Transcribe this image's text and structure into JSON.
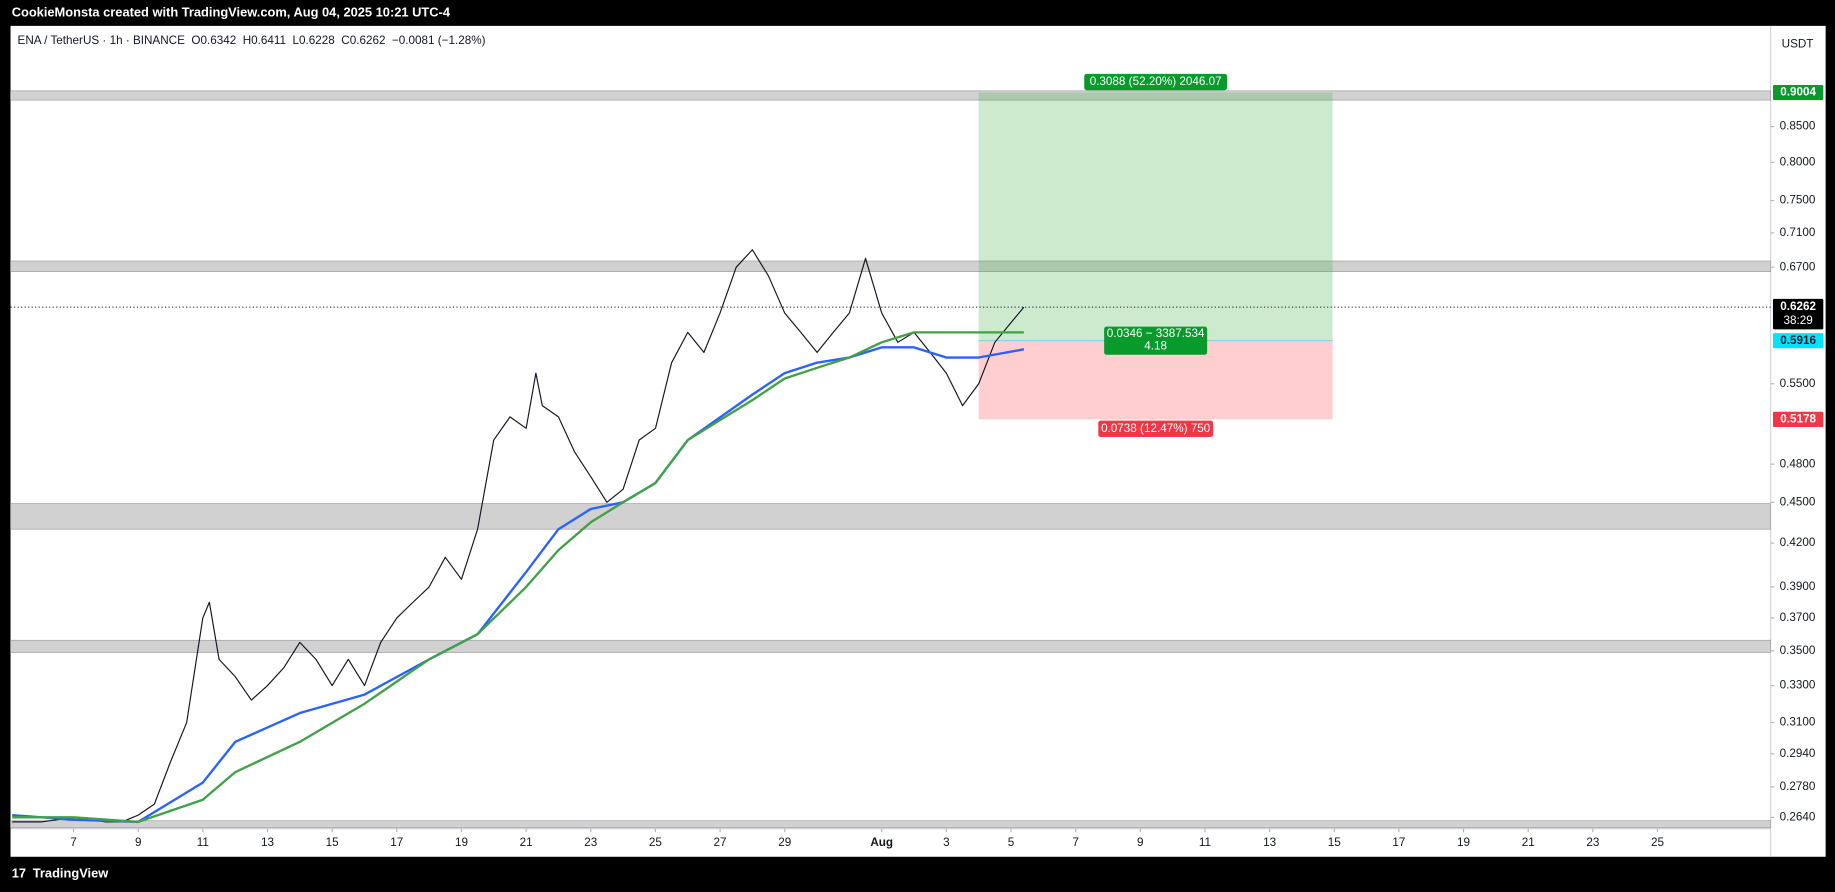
{
  "header": {
    "credit": "CookieMonsta created with TradingView.com, Aug 04, 2025 10:21 UTC-4",
    "legend": "ENA / TetherUS · 1h · BINANCE  O0.6342  H0.6411  L0.6228  C0.6262  −0.0081 (−1.28%)",
    "currency": "USDT",
    "brand": "TradingView"
  },
  "chart_data": {
    "type": "line",
    "log_scale": true,
    "xlim": [
      5.05,
      59.5
    ],
    "ylim": [
      0.259,
      1.008
    ],
    "xticks": [
      7,
      9,
      11,
      13,
      15,
      17,
      19,
      21,
      23,
      25,
      27,
      29,
      {
        "value": 32,
        "label": "Aug"
      },
      {
        "value": 34,
        "label": "3"
      },
      {
        "value": 36,
        "label": "5"
      },
      {
        "value": 38,
        "label": "7"
      },
      {
        "value": 40,
        "label": "9"
      },
      {
        "value": 42,
        "label": "11"
      },
      {
        "value": 44,
        "label": "13"
      },
      {
        "value": 46,
        "label": "15"
      },
      {
        "value": 48,
        "label": "17"
      },
      {
        "value": 50,
        "label": "19"
      },
      {
        "value": 52,
        "label": "21"
      },
      {
        "value": 54,
        "label": "23"
      },
      {
        "value": 56,
        "label": "25"
      }
    ],
    "yticks": [
      {
        "value": 0.264,
        "label": "0.2640"
      },
      {
        "value": 0.278,
        "label": "0.2780"
      },
      {
        "value": 0.294,
        "label": "0.2940"
      },
      {
        "value": 0.31,
        "label": "0.3100"
      },
      {
        "value": 0.33,
        "label": "0.3300"
      },
      {
        "value": 0.35,
        "label": "0.3500"
      },
      {
        "value": 0.37,
        "label": "0.3700"
      },
      {
        "value": 0.39,
        "label": "0.3900"
      },
      {
        "value": 0.42,
        "label": "0.4200"
      },
      {
        "value": 0.45,
        "label": "0.4500"
      },
      {
        "value": 0.48,
        "label": "0.4800"
      },
      {
        "value": 0.55,
        "label": "0.5500"
      },
      {
        "value": 0.67,
        "label": "0.6700"
      },
      {
        "value": 0.71,
        "label": "0.7100"
      },
      {
        "value": 0.75,
        "label": "0.7500"
      },
      {
        "value": 0.8,
        "label": "0.8000"
      },
      {
        "value": 0.85,
        "label": "0.8500"
      }
    ],
    "series": [
      {
        "color": "#131722",
        "x": [
          5.1,
          6,
          7,
          8,
          8.5,
          9,
          9.5,
          10,
          10.5,
          11,
          11.2,
          11.5,
          12,
          12.5,
          13,
          13.5,
          14,
          14.5,
          15,
          15.5,
          16,
          16.5,
          17,
          17.5,
          18,
          18.5,
          19,
          19.5,
          20,
          20.5,
          21,
          21.3,
          21.5,
          22,
          22.5,
          23,
          23.5,
          24,
          24.5,
          25,
          25.5,
          26,
          26.5,
          27,
          27.5,
          28,
          28.5,
          29,
          29.5,
          30,
          30.5,
          31,
          31.5,
          32,
          32.5,
          33,
          33.5,
          34,
          34.5,
          35,
          35.5,
          36,
          36.4
        ],
        "values": [
          0.262,
          0.262,
          0.264,
          0.262,
          0.262,
          0.265,
          0.27,
          0.29,
          0.31,
          0.37,
          0.38,
          0.345,
          0.335,
          0.322,
          0.33,
          0.34,
          0.355,
          0.345,
          0.33,
          0.345,
          0.33,
          0.355,
          0.37,
          0.38,
          0.39,
          0.41,
          0.395,
          0.43,
          0.5,
          0.52,
          0.51,
          0.56,
          0.53,
          0.52,
          0.49,
          0.47,
          0.45,
          0.46,
          0.5,
          0.51,
          0.57,
          0.6,
          0.58,
          0.62,
          0.67,
          0.69,
          0.66,
          0.62,
          0.6,
          0.58,
          0.6,
          0.62,
          0.68,
          0.62,
          0.59,
          0.6,
          0.58,
          0.56,
          0.53,
          0.55,
          0.59,
          0.61,
          0.6262
        ]
      },
      {
        "color": "#2962ff",
        "x": [
          5.1,
          7,
          9,
          11,
          12,
          14,
          16,
          18,
          19.5,
          21,
          22,
          23,
          24,
          25,
          26,
          28,
          29,
          30,
          31,
          32,
          33,
          34,
          35,
          36.4
        ],
        "values": [
          0.265,
          0.263,
          0.262,
          0.28,
          0.3,
          0.315,
          0.325,
          0.345,
          0.36,
          0.4,
          0.43,
          0.445,
          0.45,
          0.465,
          0.5,
          0.54,
          0.56,
          0.57,
          0.575,
          0.585,
          0.585,
          0.575,
          0.575,
          0.583
        ]
      },
      {
        "color": "#43a047",
        "x": [
          5.1,
          7,
          9,
          11,
          12,
          14,
          16,
          18,
          19.5,
          21,
          22,
          23,
          24,
          25,
          26,
          28,
          29,
          30,
          31,
          32,
          33,
          34,
          35,
          36.4
        ],
        "values": [
          0.264,
          0.264,
          0.262,
          0.272,
          0.285,
          0.3,
          0.32,
          0.345,
          0.36,
          0.39,
          0.415,
          0.435,
          0.45,
          0.465,
          0.5,
          0.535,
          0.555,
          0.565,
          0.575,
          0.59,
          0.6,
          0.6,
          0.6,
          0.6
        ]
      }
    ],
    "zones": [
      [
        0.889,
        0.903
      ],
      [
        0.665,
        0.677
      ],
      [
        0.43,
        0.449
      ],
      [
        0.349,
        0.3563
      ],
      [
        0.2594,
        0.2625
      ]
    ],
    "position": {
      "x_range": [
        35,
        45.95
      ],
      "target": 0.9004,
      "entry": 0.5916,
      "stop": 0.5178,
      "target_label": "0.3088 (52.20%) 2046.07",
      "entry_label": "0.0346 − 3387.534",
      "ratio_label": "4.18",
      "stop_label": "0.0738 (12.47%) 750"
    },
    "last_price": 0.6262,
    "countdown": "38:29"
  }
}
